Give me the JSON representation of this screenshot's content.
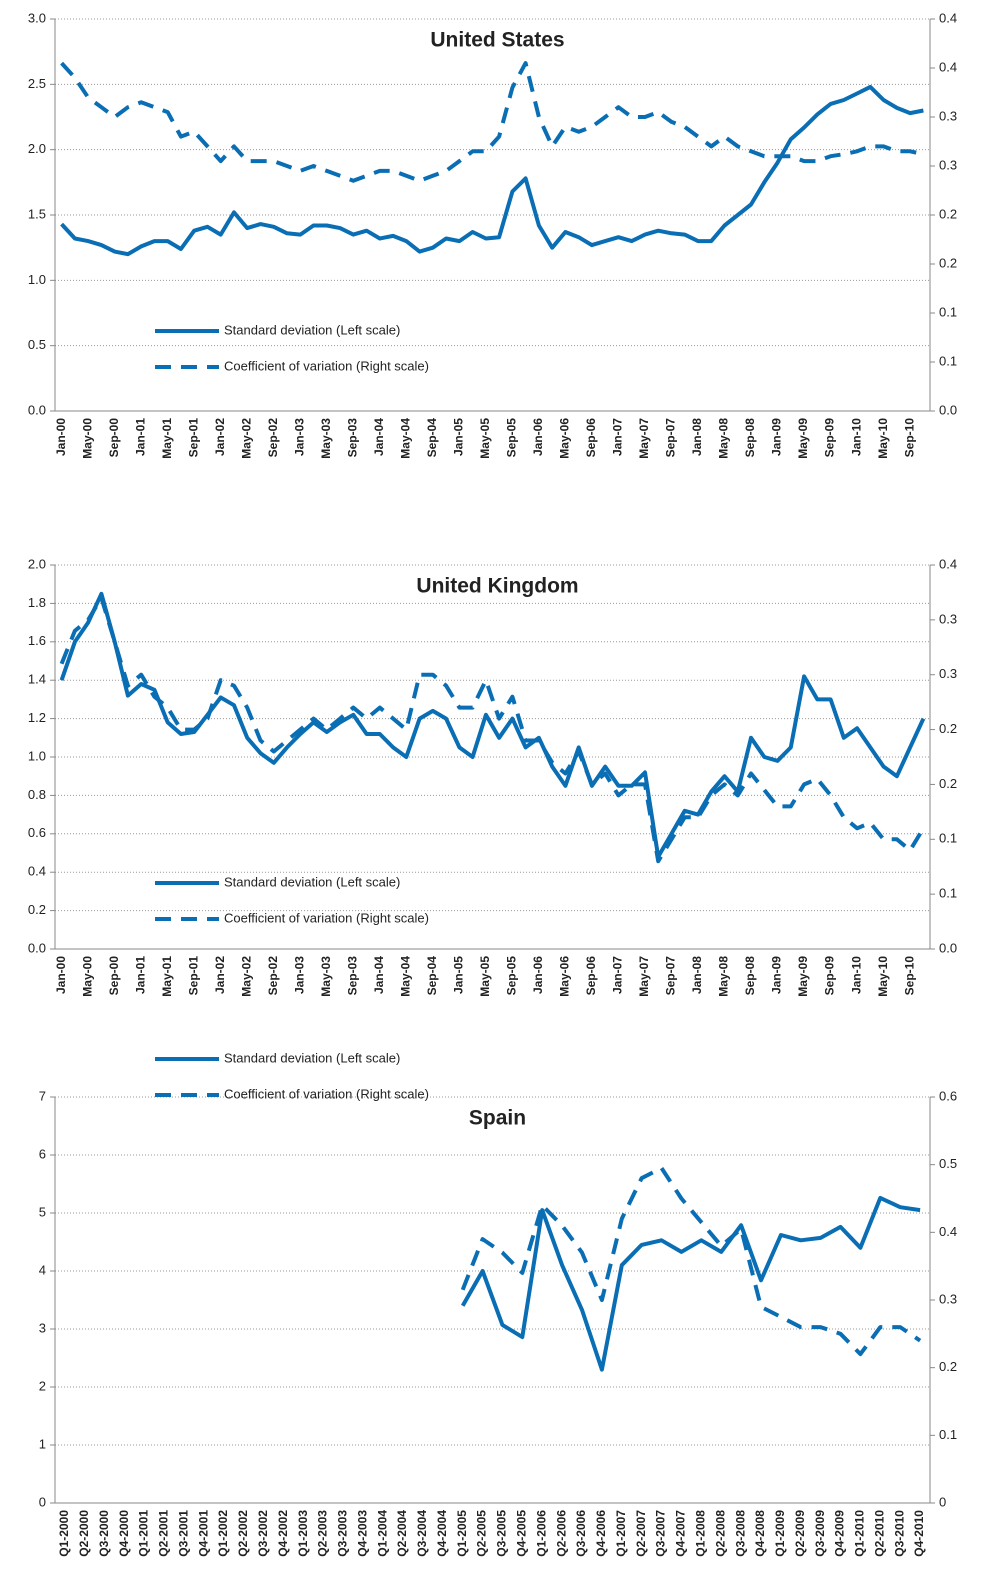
{
  "chart_data": [
    {
      "type": "line",
      "title": "United States",
      "categories": [
        "Jan-00",
        null,
        "May-00",
        null,
        "Sep-00",
        null,
        "Jan-01",
        null,
        "May-01",
        null,
        "Sep-01",
        null,
        "Jan-02",
        null,
        "May-02",
        null,
        "Sep-02",
        null,
        "Jan-03",
        null,
        "May-03",
        null,
        "Sep-03",
        null,
        "Jan-04",
        null,
        "May-04",
        null,
        "Sep-04",
        null,
        "Jan-05",
        null,
        "May-05",
        null,
        "Sep-05",
        null,
        "Jan-06",
        null,
        "May-06",
        null,
        "Sep-06",
        null,
        "Jan-07",
        null,
        "May-07",
        null,
        "Sep-07",
        null,
        "Jan-08",
        null,
        "May-08",
        null,
        "Sep-08",
        null,
        "Jan-09",
        null,
        "May-09",
        null,
        "Sep-09",
        null,
        "Jan-10",
        null,
        "May-10",
        null,
        "Sep-10",
        null
      ],
      "series": [
        {
          "name": "Standard deviation (Left scale)",
          "color": "#0a6eb4",
          "dash": false,
          "values": [
            1.43,
            1.32,
            1.3,
            1.27,
            1.22,
            1.2,
            1.26,
            1.3,
            1.3,
            1.24,
            1.38,
            1.41,
            1.35,
            1.52,
            1.4,
            1.43,
            1.41,
            1.36,
            1.35,
            1.42,
            1.42,
            1.4,
            1.35,
            1.38,
            1.32,
            1.34,
            1.3,
            1.22,
            1.25,
            1.32,
            1.3,
            1.37,
            1.32,
            1.33,
            1.68,
            1.78,
            1.42,
            1.25,
            1.37,
            1.33,
            1.27,
            1.3,
            1.33,
            1.3,
            1.35,
            1.38,
            1.36,
            1.35,
            1.3,
            1.3,
            1.42,
            1.5,
            1.58,
            1.75,
            1.9,
            2.08,
            2.17,
            2.27,
            2.35,
            2.38,
            2.43,
            2.48,
            2.38,
            2.32,
            2.28,
            2.3
          ]
        },
        {
          "name": "Coefficient of variation (Right scale)",
          "color": "#0a6eb4",
          "dash": true,
          "axis": "y2",
          "values": [
            0.355,
            0.34,
            0.32,
            0.31,
            0.3,
            0.31,
            0.315,
            0.31,
            0.305,
            0.28,
            0.285,
            0.27,
            0.255,
            0.27,
            0.255,
            0.255,
            0.255,
            0.25,
            0.245,
            0.25,
            0.245,
            0.24,
            0.235,
            0.24,
            0.245,
            0.245,
            0.24,
            0.235,
            0.24,
            0.245,
            0.255,
            0.265,
            0.265,
            0.28,
            0.33,
            0.355,
            0.3,
            0.27,
            0.29,
            0.285,
            0.29,
            0.3,
            0.31,
            0.3,
            0.3,
            0.305,
            0.295,
            0.29,
            0.28,
            0.27,
            0.28,
            0.27,
            0.265,
            0.26,
            0.26,
            0.26,
            0.255,
            0.255,
            0.26,
            0.262,
            0.265,
            0.27,
            0.27,
            0.265,
            0.265,
            0.262
          ]
        }
      ],
      "ylim": [
        0,
        3
      ],
      "yticks": [
        {
          "value": 0,
          "label": "0.0"
        },
        0.5,
        {
          "value": 1,
          "label": "1.0"
        },
        1.5,
        {
          "value": 2,
          "label": "2.0"
        },
        2.5,
        {
          "value": 3,
          "label": "3.0"
        }
      ],
      "y2lim": [
        0,
        0.4
      ],
      "y2ticks": [
        {
          "value": 0,
          "label": "0.0"
        },
        {
          "value": 0.05,
          "label": "0.1"
        },
        0.1,
        {
          "value": 0.15,
          "label": "0.2"
        },
        0.2,
        {
          "value": 0.25,
          "label": "0.3"
        },
        0.3,
        {
          "value": 0.35,
          "label": "0.4"
        },
        0.4
      ],
      "grid": true
    },
    {
      "type": "line",
      "title": "United Kingdom",
      "categories": [
        "Jan-00",
        null,
        "May-00",
        null,
        "Sep-00",
        null,
        "Jan-01",
        null,
        "May-01",
        null,
        "Sep-01",
        null,
        "Jan-02",
        null,
        "May-02",
        null,
        "Sep-02",
        null,
        "Jan-03",
        null,
        "May-03",
        null,
        "Sep-03",
        null,
        "Jan-04",
        null,
        "May-04",
        null,
        "Sep-04",
        null,
        "Jan-05",
        null,
        "May-05",
        null,
        "Sep-05",
        null,
        "Jan-06",
        null,
        "May-06",
        null,
        "Sep-06",
        null,
        "Jan-07",
        null,
        "May-07",
        null,
        "Sep-07",
        null,
        "Jan-08",
        null,
        "May-08",
        null,
        "Sep-08",
        null,
        "Jan-09",
        null,
        "May-09",
        null,
        "Sep-09",
        null,
        "Jan-10",
        null,
        "May-10",
        null,
        "Sep-10",
        null
      ],
      "series": [
        {
          "name": "Standard deviation (Left scale)",
          "color": "#0a6eb4",
          "dash": false,
          "values": [
            1.4,
            1.6,
            1.7,
            1.85,
            1.6,
            1.32,
            1.38,
            1.35,
            1.18,
            1.12,
            1.13,
            1.22,
            1.31,
            1.27,
            1.1,
            1.02,
            0.97,
            1.05,
            1.12,
            1.18,
            1.13,
            1.18,
            1.22,
            1.12,
            1.12,
            1.05,
            1.0,
            1.2,
            1.24,
            1.2,
            1.05,
            1.0,
            1.22,
            1.1,
            1.2,
            1.05,
            1.1,
            0.95,
            0.85,
            1.05,
            0.85,
            0.95,
            0.85,
            0.85,
            0.92,
            0.48,
            0.6,
            0.72,
            0.7,
            0.82,
            0.9,
            0.82,
            1.1,
            1.0,
            0.98,
            1.05,
            1.42,
            1.3,
            1.3,
            1.1,
            1.15,
            1.05,
            0.95,
            0.9,
            1.05,
            1.2
          ]
        },
        {
          "name": "Coefficient of variation (Right scale)",
          "color": "#0a6eb4",
          "dash": true,
          "axis": "y2",
          "values": [
            0.26,
            0.29,
            0.3,
            0.32,
            0.28,
            0.24,
            0.25,
            0.23,
            0.22,
            0.2,
            0.2,
            0.21,
            0.245,
            0.24,
            0.22,
            0.19,
            0.18,
            0.19,
            0.2,
            0.21,
            0.2,
            0.21,
            0.22,
            0.21,
            0.22,
            0.21,
            0.2,
            0.25,
            0.25,
            0.24,
            0.22,
            0.22,
            0.245,
            0.21,
            0.23,
            0.19,
            0.19,
            0.17,
            0.16,
            0.18,
            0.15,
            0.16,
            0.14,
            0.15,
            0.15,
            0.08,
            0.1,
            0.12,
            0.12,
            0.14,
            0.15,
            0.14,
            0.16,
            0.145,
            0.13,
            0.13,
            0.15,
            0.155,
            0.14,
            0.12,
            0.11,
            0.115,
            0.1,
            0.1,
            0.09,
            0.11
          ]
        }
      ],
      "ylim": [
        0,
        2
      ],
      "yticks": [
        {
          "value": 0,
          "label": "0.0"
        },
        0.2,
        0.4,
        0.6,
        0.8,
        {
          "value": 1,
          "label": "1.0"
        },
        1.2,
        1.4,
        1.6,
        1.8,
        {
          "value": 2,
          "label": "2.0"
        }
      ],
      "y2lim": [
        0,
        0.35
      ],
      "y2ticks": [
        {
          "value": 0,
          "label": "0.0"
        },
        {
          "value": 0.05,
          "label": "0.1"
        },
        0.1,
        {
          "value": 0.15,
          "label": "0.2"
        },
        0.2,
        {
          "value": 0.25,
          "label": "0.3"
        },
        0.3,
        {
          "value": 0.35,
          "label": "0.4"
        }
      ],
      "grid": true
    },
    {
      "type": "line",
      "title": "Spain",
      "categories": [
        "Q1-2000",
        "Q2-2000",
        "Q3-2000",
        "Q4-2000",
        "Q1-2001",
        "Q2-2001",
        "Q3-2001",
        "Q4-2001",
        "Q1-2002",
        "Q2-2002",
        "Q3-2002",
        "Q4-2002",
        "Q1-2003",
        "Q2-2003",
        "Q3-2003",
        "Q4-2003",
        "Q1-2004",
        "Q2-2004",
        "Q3-2004",
        "Q4-2004",
        "Q1-2005",
        "Q2-2005",
        "Q3-2005",
        "Q4-2005",
        "Q1-2006",
        "Q2-2006",
        "Q3-2006",
        "Q4-2006",
        "Q1-2007",
        "Q2-2007",
        "Q3-2007",
        "Q4-2007",
        "Q1-2008",
        "Q2-2008",
        "Q3-2008",
        "Q4-2008",
        "Q1-2009",
        "Q2-2009",
        "Q3-2009",
        "Q4-2009",
        "Q1-2010",
        "Q2-2010",
        "Q3-2010",
        "Q4-2010"
      ],
      "series": [
        {
          "name": "Standard deviation (Left scale)",
          "color": "#0a6eb4",
          "dash": false,
          "values": [
            null,
            null,
            null,
            null,
            null,
            null,
            null,
            null,
            null,
            null,
            null,
            null,
            null,
            null,
            null,
            null,
            null,
            null,
            null,
            null,
            3.4,
            4.0,
            3.07,
            2.86,
            5.05,
            4.1,
            3.33,
            2.3,
            4.1,
            4.45,
            4.53,
            4.33,
            4.53,
            4.33,
            4.79,
            3.84,
            4.62,
            4.53,
            4.57,
            4.76,
            4.4,
            5.26,
            5.1,
            5.05
          ]
        },
        {
          "name": "Coefficient of variation (Right scale)",
          "color": "#0a6eb4",
          "dash": true,
          "axis": "y2",
          "values": [
            null,
            null,
            null,
            null,
            null,
            null,
            null,
            null,
            null,
            null,
            null,
            null,
            null,
            null,
            null,
            null,
            null,
            null,
            null,
            null,
            0.315,
            0.39,
            0.37,
            0.34,
            0.44,
            0.41,
            0.37,
            0.3,
            0.42,
            0.48,
            0.495,
            0.45,
            0.415,
            0.38,
            0.405,
            0.29,
            0.275,
            0.26,
            0.26,
            0.25,
            0.22,
            0.26,
            0.26,
            0.24
          ]
        }
      ],
      "ylim": [
        0,
        7
      ],
      "yticks": [
        0,
        1,
        2,
        3,
        4,
        5,
        6,
        7
      ],
      "y2lim": [
        0,
        0.6
      ],
      "y2ticks": [
        0,
        0.1,
        0.2,
        0.3,
        0.4,
        0.5,
        0.6
      ],
      "grid": true
    }
  ]
}
